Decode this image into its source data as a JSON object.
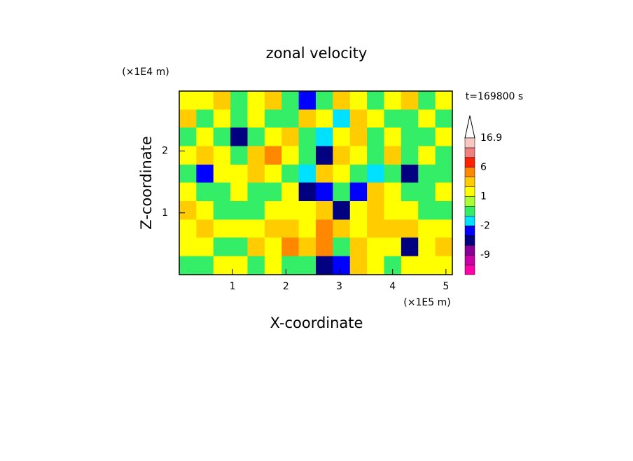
{
  "chart_data": {
    "type": "contour",
    "title": "zonal velocity",
    "xlabel": "X-coordinate",
    "ylabel": "Z-coordinate",
    "x_unit": "(×1E5 m)",
    "y_unit": "(×1E4 m)",
    "annotation": "t=169800 s",
    "xlim": [
      0,
      5.12
    ],
    "ylim": [
      0,
      2.97
    ],
    "xticks": [
      1,
      2,
      3,
      4,
      5
    ],
    "yticks": [
      1,
      2
    ],
    "x": [
      0.16,
      0.48,
      0.8,
      1.12,
      1.44,
      1.76,
      2.08,
      2.4,
      2.72,
      3.04,
      3.36,
      3.68,
      4.0,
      4.32,
      4.64,
      4.96
    ],
    "y": [
      2.82,
      2.52,
      2.23,
      1.93,
      1.63,
      1.34,
      1.04,
      0.74,
      0.45,
      0.15
    ],
    "z": [
      [
        1.5,
        1.5,
        3,
        -0.5,
        1.5,
        3,
        -0.5,
        -3,
        -0.5,
        3,
        1.5,
        -0.5,
        1.5,
        3,
        -0.5,
        1.5
      ],
      [
        3,
        -0.5,
        1.5,
        -0.5,
        1.5,
        -0.5,
        -0.5,
        3,
        1.5,
        -1.5,
        3,
        1.5,
        -0.5,
        -0.5,
        1.5,
        -0.5
      ],
      [
        -0.5,
        1.5,
        -0.5,
        -4,
        -0.5,
        1.5,
        3,
        -0.5,
        -1.5,
        1.5,
        3,
        -0.5,
        1.5,
        -0.5,
        -0.5,
        1.5
      ],
      [
        1.5,
        3,
        1.5,
        -0.5,
        3,
        5,
        1.5,
        -0.5,
        -4,
        3,
        1.5,
        -0.5,
        3,
        -0.5,
        1.5,
        -0.5
      ],
      [
        -0.5,
        -3,
        1.5,
        1.5,
        3,
        1.5,
        -0.5,
        -1.5,
        3,
        1.5,
        -0.5,
        -1.5,
        -0.5,
        -4,
        -0.5,
        -0.5
      ],
      [
        1.5,
        -0.5,
        -0.5,
        1.5,
        -0.5,
        -0.5,
        1.5,
        -4,
        -2.5,
        -0.5,
        -3,
        3,
        1.5,
        -0.5,
        -0.5,
        1.5
      ],
      [
        3,
        1.5,
        -0.5,
        -0.5,
        -0.5,
        1.5,
        1.5,
        1.5,
        3,
        -4,
        1.5,
        3,
        1.5,
        1.5,
        -0.5,
        -0.5
      ],
      [
        1.5,
        3,
        1.5,
        1.5,
        1.5,
        3,
        3,
        1.5,
        5,
        3,
        1.5,
        3,
        3,
        3,
        1.5,
        1.5
      ],
      [
        1.5,
        1.5,
        -0.5,
        -0.5,
        3,
        1.5,
        5,
        3,
        5,
        -0.5,
        3,
        1.5,
        1.5,
        -4,
        1.5,
        3
      ],
      [
        -0.5,
        -0.5,
        1.5,
        1.5,
        -0.5,
        1.5,
        -0.5,
        -0.5,
        -4,
        -2.5,
        3,
        1.5,
        -0.5,
        1.5,
        1.5,
        1.5
      ]
    ],
    "colorbar": {
      "boundaries": [
        -15,
        -12,
        -9,
        -6,
        -3,
        -2,
        -1,
        0,
        1,
        2,
        4,
        6,
        9,
        12,
        16.9
      ],
      "colors": [
        "#ff00aa",
        "#cc00aa",
        "#880099",
        "#000080",
        "#0000ff",
        "#00e0ff",
        "#33ee66",
        "#aaff33",
        "#ffff00",
        "#ffcc00",
        "#ff8800",
        "#ff2200",
        "#f08080",
        "#f8c8c0"
      ],
      "ticks": [
        -9,
        -2,
        1,
        6,
        16.9
      ]
    }
  }
}
